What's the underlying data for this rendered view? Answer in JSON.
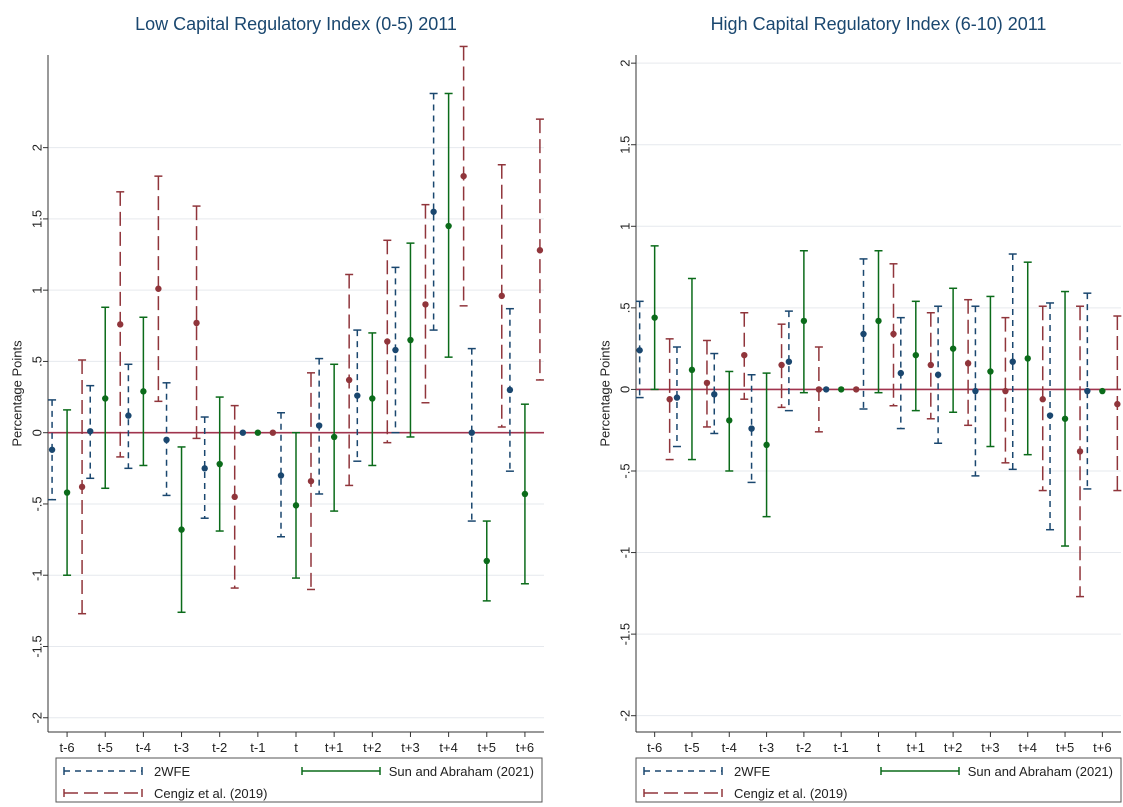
{
  "chart_data": [
    {
      "type": "errorbar",
      "title": "Low Capital Regulatory Index (0-5) 2011",
      "ylabel": "Percentage Points",
      "xlabel": "",
      "categories": [
        "t-6",
        "t-5",
        "t-4",
        "t-3",
        "t-2",
        "t-1",
        "t",
        "t+1",
        "t+2",
        "t+3",
        "t+4",
        "t+5",
        "t+6"
      ],
      "ylim": [
        -2.1,
        2.65
      ],
      "yticks": [
        -2,
        -1.5,
        -1,
        -0.5,
        0,
        0.5,
        1,
        1.5,
        2
      ],
      "ytick_labels": [
        "-2",
        "-1.5",
        "-1",
        "-.5",
        "0",
        ".5",
        "1",
        "1.5",
        "2"
      ],
      "grid": true,
      "reference_line": 0,
      "series": [
        {
          "name": "2WFE",
          "color": "#1a476f",
          "style": "short-dash",
          "estimate": [
            -0.12,
            0.01,
            0.12,
            -0.05,
            -0.25,
            0.0,
            -0.3,
            0.05,
            0.26,
            0.58,
            1.55,
            0.0,
            0.3
          ],
          "lower": [
            -0.47,
            -0.32,
            -0.25,
            -0.44,
            -0.6,
            0.0,
            -0.73,
            -0.43,
            -0.2,
            0.0,
            0.72,
            -0.62,
            -0.27
          ],
          "upper": [
            0.23,
            0.33,
            0.48,
            0.35,
            0.11,
            0.0,
            0.14,
            0.52,
            0.72,
            1.16,
            2.38,
            0.59,
            0.87
          ]
        },
        {
          "name": "Sun and Abraham (2021)",
          "color": "#0b6b1a",
          "style": "solid",
          "estimate": [
            -0.42,
            0.24,
            0.29,
            -0.68,
            -0.22,
            0.0,
            -0.51,
            -0.03,
            0.24,
            0.65,
            1.45,
            -0.9,
            -0.43
          ],
          "lower": [
            -1.0,
            -0.39,
            -0.23,
            -1.26,
            -0.69,
            0.0,
            -1.02,
            -0.55,
            -0.23,
            -0.03,
            0.53,
            -1.18,
            -1.06
          ],
          "upper": [
            0.16,
            0.88,
            0.81,
            -0.1,
            0.25,
            0.0,
            0.0,
            0.48,
            0.7,
            1.33,
            2.38,
            -0.62,
            0.2
          ]
        },
        {
          "name": "Cengiz et al. (2019)",
          "color": "#90353b",
          "style": "long-dash",
          "estimate": [
            -0.38,
            0.76,
            1.01,
            0.77,
            -0.45,
            0.0,
            -0.34,
            0.37,
            0.64,
            0.9,
            1.8,
            0.96,
            1.28
          ],
          "lower": [
            -1.27,
            -0.17,
            0.22,
            -0.04,
            -1.09,
            0.0,
            -1.1,
            -0.37,
            -0.07,
            0.21,
            0.89,
            0.04,
            0.37
          ],
          "upper": [
            0.51,
            1.69,
            1.8,
            1.59,
            0.19,
            0.0,
            0.42,
            1.11,
            1.35,
            1.6,
            2.71,
            1.88,
            2.2
          ]
        }
      ],
      "legend": {
        "placement": "bottom",
        "order": [
          "2WFE",
          "Sun and Abraham (2021)",
          "Cengiz et al. (2019)"
        ]
      }
    },
    {
      "type": "errorbar",
      "title": "High Capital Regulatory Index (6-10) 2011",
      "ylabel": "Percentage Points",
      "xlabel": "",
      "categories": [
        "t-6",
        "t-5",
        "t-4",
        "t-3",
        "t-2",
        "t-1",
        "t",
        "t+1",
        "t+2",
        "t+3",
        "t+4",
        "t+5",
        "t+6"
      ],
      "ylim": [
        -2.1,
        2.05
      ],
      "yticks": [
        -2,
        -1.5,
        -1,
        -0.5,
        0,
        0.5,
        1,
        1.5,
        2
      ],
      "ytick_labels": [
        "-2",
        "-1.5",
        "-1",
        "-.5",
        "0",
        ".5",
        "1",
        "1.5",
        "2"
      ],
      "grid": true,
      "reference_line": 0,
      "series": [
        {
          "name": "2WFE",
          "color": "#1a476f",
          "style": "short-dash",
          "estimate": [
            0.24,
            -0.05,
            -0.03,
            -0.24,
            0.17,
            0.0,
            0.34,
            0.1,
            0.09,
            -0.01,
            0.17,
            -0.16,
            -0.01
          ],
          "lower": [
            -0.05,
            -0.35,
            -0.27,
            -0.57,
            -0.13,
            0.0,
            -0.12,
            -0.24,
            -0.33,
            -0.53,
            -0.49,
            -0.86,
            -0.61
          ],
          "upper": [
            0.54,
            0.26,
            0.22,
            0.09,
            0.48,
            0.0,
            0.8,
            0.44,
            0.51,
            0.51,
            0.83,
            0.53,
            0.59
          ]
        },
        {
          "name": "Sun and Abraham (2021)",
          "color": "#0b6b1a",
          "style": "solid",
          "estimate": [
            0.44,
            0.12,
            -0.19,
            -0.34,
            0.42,
            0.0,
            0.42,
            0.21,
            0.25,
            0.11,
            0.19,
            -0.18,
            -0.01
          ],
          "lower": [
            0.0,
            -0.43,
            -0.5,
            -0.78,
            -0.02,
            0.0,
            -0.02,
            -0.13,
            -0.14,
            -0.35,
            -0.4,
            -0.96,
            -0.01
          ],
          "upper": [
            0.88,
            0.68,
            0.11,
            0.1,
            0.85,
            0.0,
            0.85,
            0.54,
            0.62,
            0.57,
            0.78,
            0.6,
            -0.01
          ]
        },
        {
          "name": "Cengiz et al. (2019)",
          "color": "#90353b",
          "style": "long-dash",
          "estimate": [
            -0.06,
            0.04,
            0.21,
            0.15,
            0.0,
            0.0,
            0.34,
            0.15,
            0.16,
            -0.01,
            -0.06,
            -0.38,
            -0.09
          ],
          "lower": [
            -0.43,
            -0.23,
            -0.06,
            -0.11,
            -0.26,
            0.0,
            -0.1,
            -0.18,
            -0.22,
            -0.45,
            -0.62,
            -1.27,
            -0.62
          ],
          "upper": [
            0.31,
            0.3,
            0.47,
            0.4,
            0.26,
            0.0,
            0.77,
            0.47,
            0.55,
            0.44,
            0.51,
            0.51,
            0.45
          ]
        }
      ],
      "legend": {
        "placement": "bottom",
        "order": [
          "2WFE",
          "Sun and Abraham (2021)",
          "Cengiz et al. (2019)"
        ]
      }
    }
  ]
}
